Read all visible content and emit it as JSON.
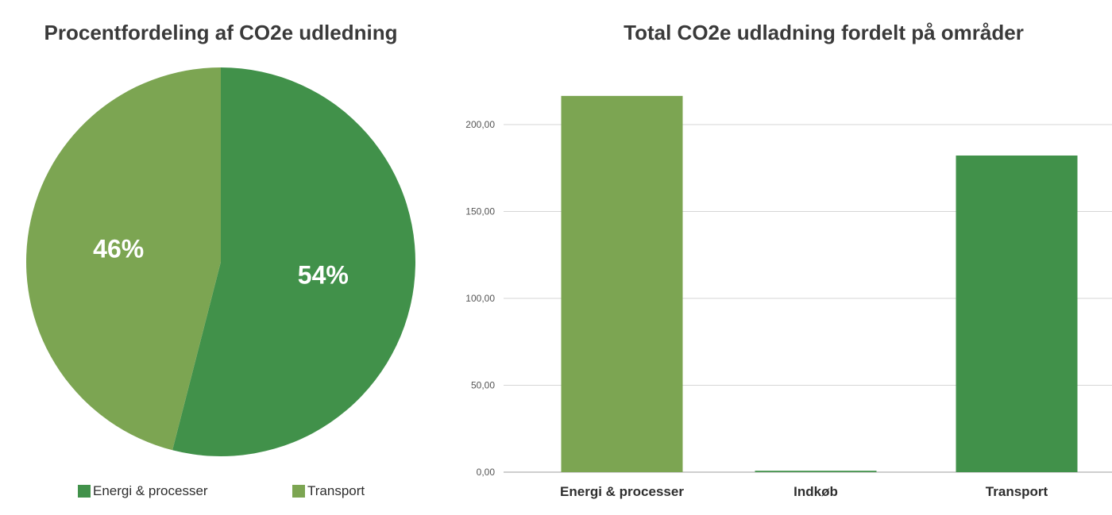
{
  "charts": {
    "pie_title": "Procentfordeling af CO2e udledning",
    "bar_title": "Total CO2e udladning fordelt på områder"
  },
  "colors": {
    "energi": "#41914a",
    "transport": "#7ca552",
    "grid": "#d6d6d6",
    "axis_text": "#555555"
  },
  "chart_data": [
    {
      "type": "pie",
      "title": "Procentfordeling af CO2e udledning",
      "categories": [
        "Energi & processer",
        "Transport"
      ],
      "values": [
        54,
        46
      ],
      "labels": [
        "54%",
        "46%"
      ],
      "colors": [
        "#41914a",
        "#7ca552"
      ],
      "legend": "bottom"
    },
    {
      "type": "bar",
      "title": "Total CO2e udladning fordelt på områder",
      "categories": [
        "Energi & processer",
        "Indkøb",
        "Transport"
      ],
      "values": [
        216.5,
        0.8,
        182.2
      ],
      "colors": [
        "#7ca552",
        "#41914a",
        "#41914a"
      ],
      "ylim": [
        0,
        220
      ],
      "yticks": [
        "0,00",
        "50,00",
        "100,00",
        "150,00",
        "200,00"
      ],
      "ytick_values": [
        0,
        50,
        100,
        150,
        200
      ],
      "grid": true
    }
  ]
}
